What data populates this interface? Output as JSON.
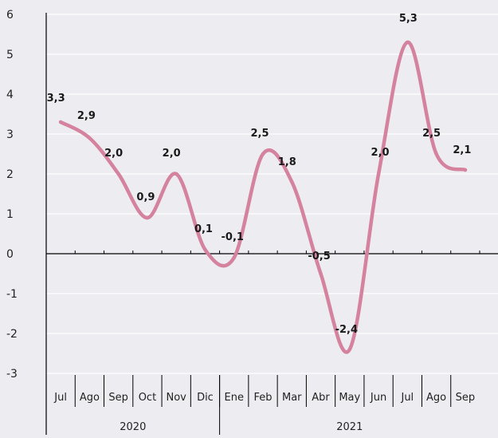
{
  "chart_data": {
    "type": "line",
    "title": "",
    "xlabel": "",
    "ylabel": "",
    "ylim": [
      -3,
      6
    ],
    "yticks": [
      "6",
      "5",
      "4",
      "3",
      "2",
      "1",
      "0",
      "-1",
      "-2",
      "-3"
    ],
    "ytick_values": [
      6,
      5,
      4,
      3,
      2,
      1,
      0,
      -1,
      -2,
      -3
    ],
    "categories": [
      "Jul",
      "Ago",
      "Sep",
      "Oct",
      "Nov",
      "Dic",
      "Ene",
      "Feb",
      "Mar",
      "Abr",
      "May",
      "Jun",
      "Jul",
      "Ago",
      "Sep"
    ],
    "groups": [
      {
        "label": "2020",
        "count": 6
      },
      {
        "label": "2021",
        "count": 9
      }
    ],
    "series": [
      {
        "values": [
          3.3,
          2.9,
          2.0,
          0.9,
          2.0,
          0.1,
          -0.1,
          2.5,
          1.8,
          -0.5,
          -2.4,
          2.0,
          5.3,
          2.5,
          2.1
        ],
        "labels": [
          "3,3",
          "2,9",
          "2,0",
          "0,9",
          "2,0",
          "0,1",
          "-0,1",
          "2,5",
          "1,8",
          "-0,5",
          "-2,4",
          "2,0",
          "5,3",
          "2,5",
          "2,1"
        ],
        "color": "#d4829e"
      }
    ],
    "grid": true,
    "legend": "none",
    "colors": {
      "background": "#edecf1",
      "grid": "#ffffff",
      "axis": "#000000"
    }
  }
}
